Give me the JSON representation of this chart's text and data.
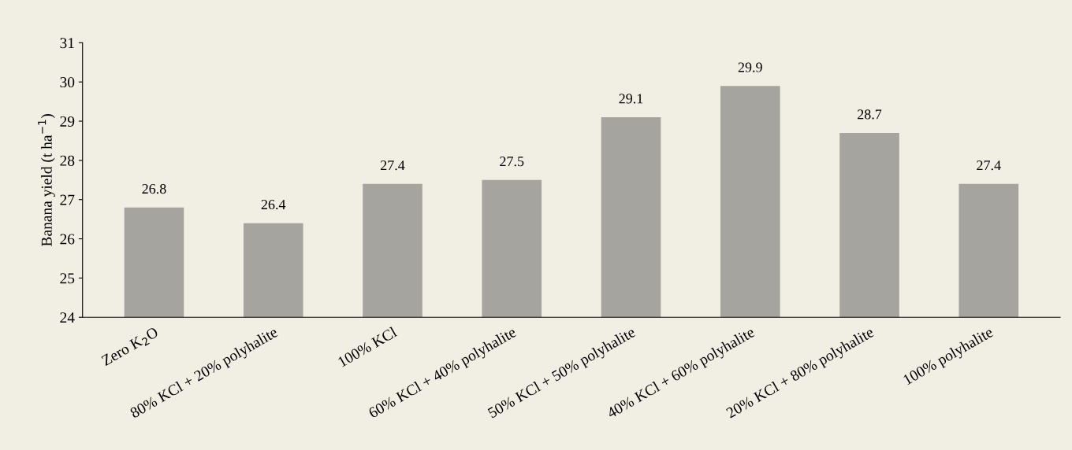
{
  "chart_data": {
    "type": "bar",
    "ylabel": "Banana yield (t ha$^{−1}$)",
    "categories": [
      "Zero K$_{2}$O",
      "80% KCl + 20% polyhalite",
      "100% KCl",
      "60% KCl + 40% polyhalite",
      "50% KCl + 50% polyhalite",
      "40% KCl + 60% polyhalite",
      "20% KCl + 80% polyhalite",
      "100% polyhalite"
    ],
    "values": [
      26.8,
      26.4,
      27.4,
      27.5,
      29.1,
      29.9,
      28.7,
      27.4
    ],
    "color": "#a5a49f",
    "ylim": [
      24,
      31
    ],
    "yticks": [
      24,
      25,
      26,
      27,
      28,
      29,
      30,
      31
    ],
    "data_labels": true,
    "grid": false
  }
}
